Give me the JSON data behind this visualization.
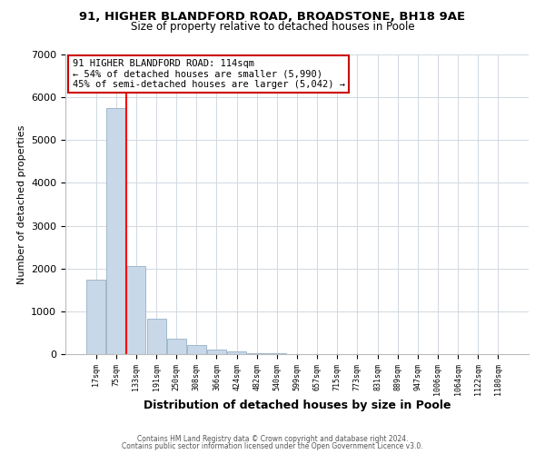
{
  "title_line1": "91, HIGHER BLANDFORD ROAD, BROADSTONE, BH18 9AE",
  "title_line2": "Size of property relative to detached houses in Poole",
  "xlabel": "Distribution of detached houses by size in Poole",
  "ylabel": "Number of detached properties",
  "bar_color": "#c8d8e8",
  "bar_edgecolor": "#a0b8cc",
  "bin_labels": [
    "17sqm",
    "75sqm",
    "133sqm",
    "191sqm",
    "250sqm",
    "308sqm",
    "366sqm",
    "424sqm",
    "482sqm",
    "540sqm",
    "599sqm",
    "657sqm",
    "715sqm",
    "773sqm",
    "831sqm",
    "889sqm",
    "947sqm",
    "1006sqm",
    "1064sqm",
    "1122sqm",
    "1180sqm"
  ],
  "bar_heights": [
    1750,
    5750,
    2050,
    820,
    360,
    220,
    100,
    55,
    30,
    15,
    5,
    0,
    0,
    0,
    0,
    0,
    0,
    0,
    0,
    0,
    0
  ],
  "ylim": [
    0,
    7000
  ],
  "yticks": [
    0,
    1000,
    2000,
    3000,
    4000,
    5000,
    6000,
    7000
  ],
  "property_line_x": 1.5,
  "annotation_title": "91 HIGHER BLANDFORD ROAD: 114sqm",
  "annotation_line2": "← 54% of detached houses are smaller (5,990)",
  "annotation_line3": "45% of semi-detached houses are larger (5,042) →",
  "annotation_box_color": "#ffffff",
  "annotation_border_color": "#cc0000",
  "footer_line1": "Contains HM Land Registry data © Crown copyright and database right 2024.",
  "footer_line2": "Contains public sector information licensed under the Open Government Licence v3.0.",
  "bg_color": "#ffffff",
  "grid_color": "#d0d8e0"
}
